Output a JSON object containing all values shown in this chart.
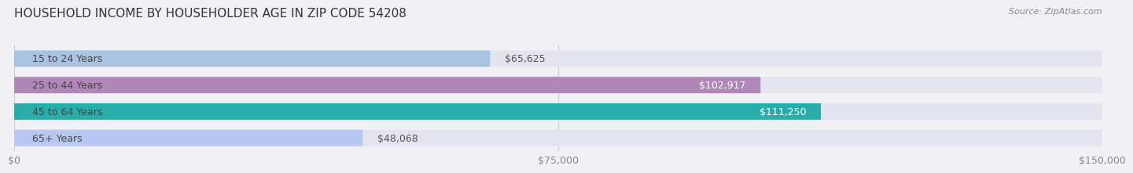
{
  "title": "HOUSEHOLD INCOME BY HOUSEHOLDER AGE IN ZIP CODE 54208",
  "source": "Source: ZipAtlas.com",
  "categories": [
    "15 to 24 Years",
    "25 to 44 Years",
    "45 to 64 Years",
    "65+ Years"
  ],
  "values": [
    65625,
    102917,
    111250,
    48068
  ],
  "bar_colors": [
    "#a8c4e0",
    "#b088b8",
    "#2aacaa",
    "#b8c8f0"
  ],
  "bar_labels": [
    "$65,625",
    "$102,917",
    "$111,250",
    "$48,068"
  ],
  "label_colors": [
    "#555555",
    "#ffffff",
    "#ffffff",
    "#555555"
  ],
  "xlim": [
    0,
    150000
  ],
  "xticks": [
    0,
    75000,
    150000
  ],
  "xticklabels": [
    "$0",
    "$75,000",
    "$150,000"
  ],
  "background_color": "#f0f0f5",
  "bar_bg_color": "#e4e4ee",
  "title_fontsize": 11,
  "source_fontsize": 8,
  "label_fontsize": 9,
  "tick_fontsize": 9,
  "category_fontsize": 9
}
